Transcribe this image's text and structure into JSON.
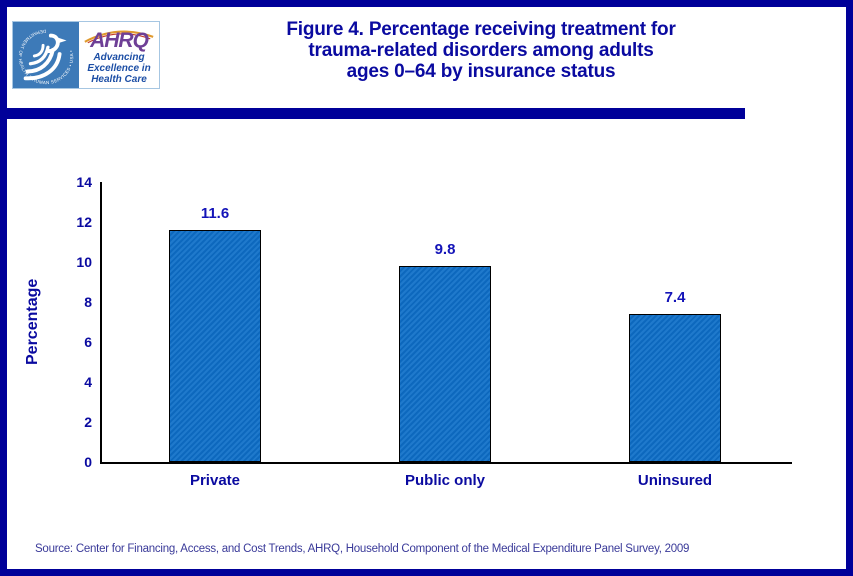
{
  "header": {
    "logo": {
      "hhs_circle_text": "DEPARTMENT OF HEALTH & HUMAN SERVICES • USA •",
      "ahrq_acronym": "AHRQ",
      "tagline": [
        "Advancing",
        "Excellence in",
        "Health Care"
      ]
    },
    "title_lines": [
      "Figure 4. Percentage receiving treatment for",
      "trauma-related disorders among adults",
      "ages 0–64 by insurance status"
    ]
  },
  "chart_data": {
    "type": "bar",
    "title": "Figure 4. Percentage receiving treatment for trauma-related disorders among adults ages 0–64 by insurance status",
    "categories": [
      "Private",
      "Public only",
      "Uninsured"
    ],
    "values": [
      11.6,
      9.8,
      7.4
    ],
    "data_labels": [
      "11.6",
      "9.8",
      "7.4"
    ],
    "xlabel": "",
    "ylabel": "Percentage",
    "ylim": [
      0,
      14
    ],
    "yticks": [
      0,
      2,
      4,
      6,
      8,
      10,
      12,
      14
    ],
    "grid": false,
    "legend": false,
    "bar_color": "#0e6fc8",
    "bar_border_color": "#000000",
    "value_label_color": "#1414b8",
    "axis_text_color": "#0a0aa0"
  },
  "footer": {
    "source": "Source: Center for Financing, Access, and Cost Trends, AHRQ, Household Component of the Medical Expenditure Panel Survey, 2009"
  },
  "colors": {
    "page_border": "#000099",
    "divider": "#000099",
    "title_text": "#0a0aa0",
    "source_text": "#3a3a99",
    "hhs_blue": "#3d7ab8",
    "ahrq_purple": "#6e3f96",
    "tagline_blue": "#1c4ea5"
  }
}
